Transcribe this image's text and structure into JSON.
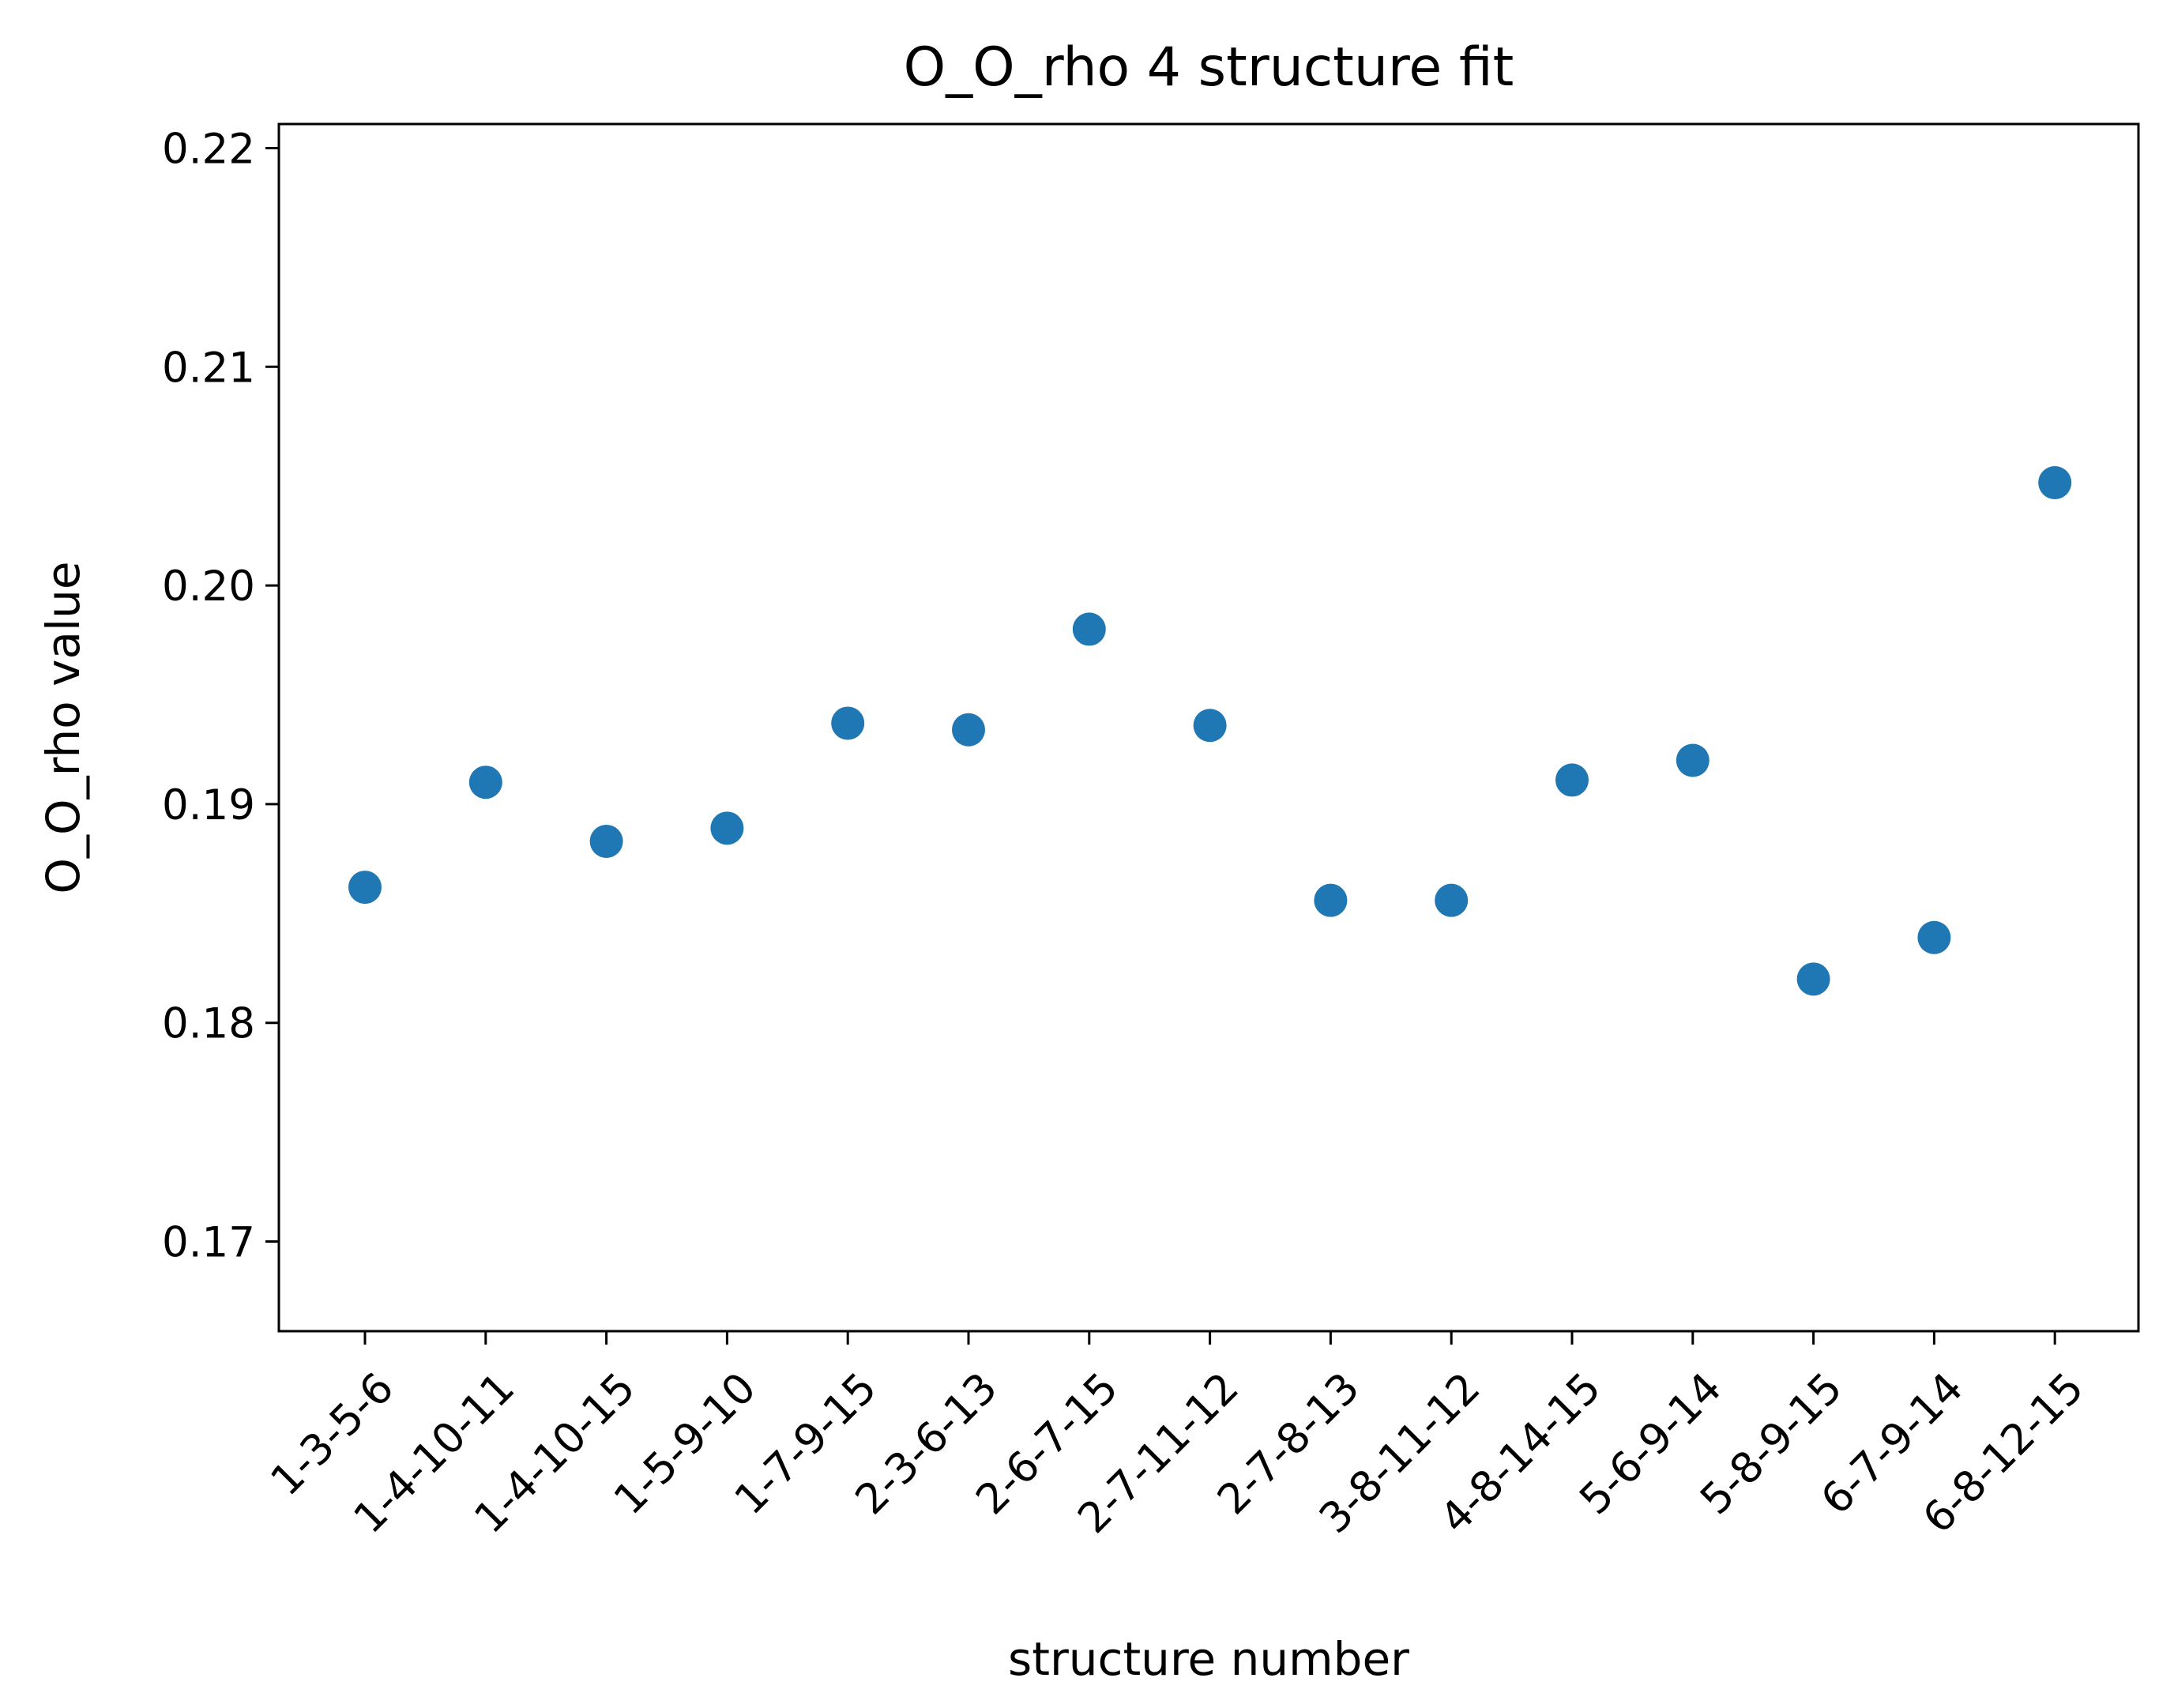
{
  "chart_data": {
    "type": "scatter",
    "title": "O_O_rho 4 structure fit",
    "xlabel": "structure number",
    "ylabel": "O_O_rho value",
    "ylim": [
      0.1659,
      0.2211
    ],
    "yticks": [
      "0.17",
      "0.18",
      "0.19",
      "0.20",
      "0.21",
      "0.22"
    ],
    "categories": [
      "1-3-5-6",
      "1-4-10-11",
      "1-4-10-15",
      "1-5-9-10",
      "1-7-9-15",
      "2-3-6-13",
      "2-6-7-15",
      "2-7-11-12",
      "2-7-8-13",
      "3-8-11-12",
      "4-8-14-15",
      "5-6-9-14",
      "5-8-9-15",
      "6-7-9-14",
      "6-8-12-15"
    ],
    "values": [
      0.1862,
      0.191,
      0.1883,
      0.1889,
      0.1937,
      0.1934,
      0.198,
      0.1936,
      0.1856,
      0.1856,
      0.1911,
      0.192,
      0.182,
      0.1839,
      0.2047
    ],
    "grid": false,
    "marker_color": "#1f77b4"
  }
}
